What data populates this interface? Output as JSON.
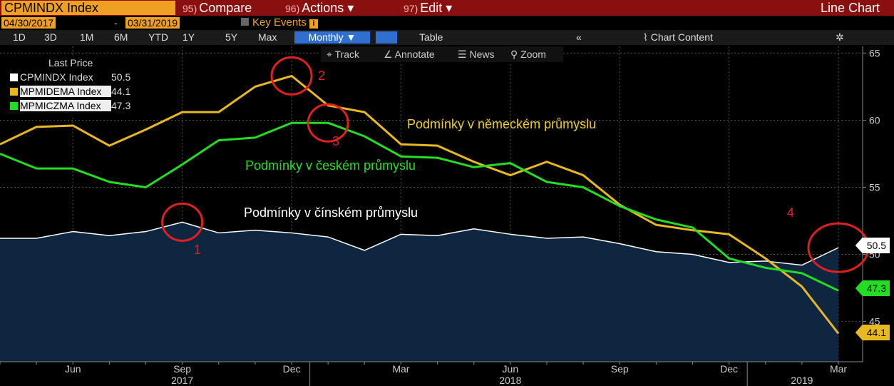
{
  "header": {
    "ticker": "CPMINDX Index",
    "compare_num": "95)",
    "compare_label": "Compare",
    "actions_num": "96)",
    "actions_label": "Actions",
    "edit_num": "97)",
    "edit_label": "Edit",
    "chart_type_label": "Line Chart"
  },
  "daterow": {
    "start": "04/30/2017",
    "sep": "-",
    "end": "03/31/2019",
    "key_events": "Key Events"
  },
  "toolbar": {
    "periods": [
      "1D",
      "3D",
      "1M",
      "6M",
      "YTD",
      "1Y",
      "5Y",
      "Max"
    ],
    "frequency": "Monthly",
    "table_label": "Table",
    "chart_content_label": "Chart Content"
  },
  "subtoolbar": {
    "track": "Track",
    "annotate": "Annotate",
    "news": "News",
    "zoom": "Zoom"
  },
  "legend": {
    "title": "Last Price",
    "items": [
      {
        "name": "CPMINDX Index",
        "value": "50.5",
        "color": "#ffffff"
      },
      {
        "name": "MPMIDEMA Index",
        "value": "44.1",
        "color": "#e8b820"
      },
      {
        "name": "MPMICZMA Index",
        "value": "47.3",
        "color": "#22dd22"
      }
    ]
  },
  "annotations": {
    "german": "Podmínky v německém průmyslu",
    "czech": "Podmínky v českém průmyslu",
    "chinese": "Podmínky v čínském průmyslu",
    "markers": [
      "1",
      "2",
      "3",
      "4"
    ]
  },
  "chart_data": {
    "type": "line",
    "x": [
      "2017-04",
      "2017-05",
      "2017-06",
      "2017-07",
      "2017-08",
      "2017-09",
      "2017-10",
      "2017-11",
      "2017-12",
      "2018-01",
      "2018-02",
      "2018-03",
      "2018-04",
      "2018-05",
      "2018-06",
      "2018-07",
      "2018-08",
      "2018-09",
      "2018-10",
      "2018-11",
      "2018-12",
      "2019-01",
      "2019-02",
      "2019-03"
    ],
    "series": [
      {
        "name": "CPMINDX Index",
        "color": "#ffffff",
        "area": true,
        "last": "50.5",
        "values": [
          51.2,
          51.2,
          51.7,
          51.4,
          51.7,
          52.4,
          51.6,
          51.8,
          51.6,
          51.3,
          50.3,
          51.5,
          51.4,
          51.9,
          51.5,
          51.2,
          51.3,
          50.8,
          50.2,
          50.0,
          49.4,
          49.5,
          49.2,
          50.5
        ]
      },
      {
        "name": "MPMIDEMA Index",
        "color": "#e8b820",
        "area": false,
        "last": "44.1",
        "values": [
          58.2,
          59.5,
          59.6,
          58.1,
          59.3,
          60.6,
          60.6,
          62.5,
          63.3,
          61.1,
          60.6,
          58.2,
          58.1,
          56.9,
          55.9,
          56.9,
          55.9,
          53.7,
          52.2,
          51.8,
          51.5,
          49.7,
          47.6,
          44.1
        ]
      },
      {
        "name": "MPMICZMA Index",
        "color": "#22dd22",
        "area": false,
        "last": "47.3",
        "values": [
          57.5,
          56.4,
          56.4,
          55.4,
          55.0,
          56.7,
          58.5,
          58.7,
          59.8,
          59.8,
          58.8,
          57.3,
          57.2,
          56.5,
          56.8,
          55.4,
          55.0,
          53.6,
          52.6,
          52.0,
          49.7,
          49.0,
          48.6,
          47.3
        ]
      }
    ],
    "y_ticks": [
      "45",
      "50",
      "55",
      "60",
      "65"
    ],
    "ylim": [
      42,
      65.5
    ],
    "x_month_labels": [
      {
        "label": "Jun",
        "x": "2017-06"
      },
      {
        "label": "Sep",
        "x": "2017-09"
      },
      {
        "label": "Dec",
        "x": "2017-12"
      },
      {
        "label": "Mar",
        "x": "2018-03"
      },
      {
        "label": "Jun",
        "x": "2018-06"
      },
      {
        "label": "Sep",
        "x": "2018-09"
      },
      {
        "label": "Dec",
        "x": "2018-12"
      },
      {
        "label": "Mar",
        "x": "2019-03"
      }
    ],
    "x_year_labels": [
      {
        "label": "2017",
        "x": "2017-09"
      },
      {
        "label": "2018",
        "x": "2018-06"
      },
      {
        "label": "2019",
        "x": "2019-02"
      }
    ],
    "markers": [
      {
        "label": "1",
        "series": 0,
        "x": "2017-09"
      },
      {
        "label": "2",
        "series": 1,
        "x": "2017-12"
      },
      {
        "label": "3",
        "series": 2,
        "x": "2018-01"
      },
      {
        "label": "4",
        "series": 0,
        "x": "2019-03"
      }
    ],
    "grid": true,
    "legend_position": "top-left"
  }
}
